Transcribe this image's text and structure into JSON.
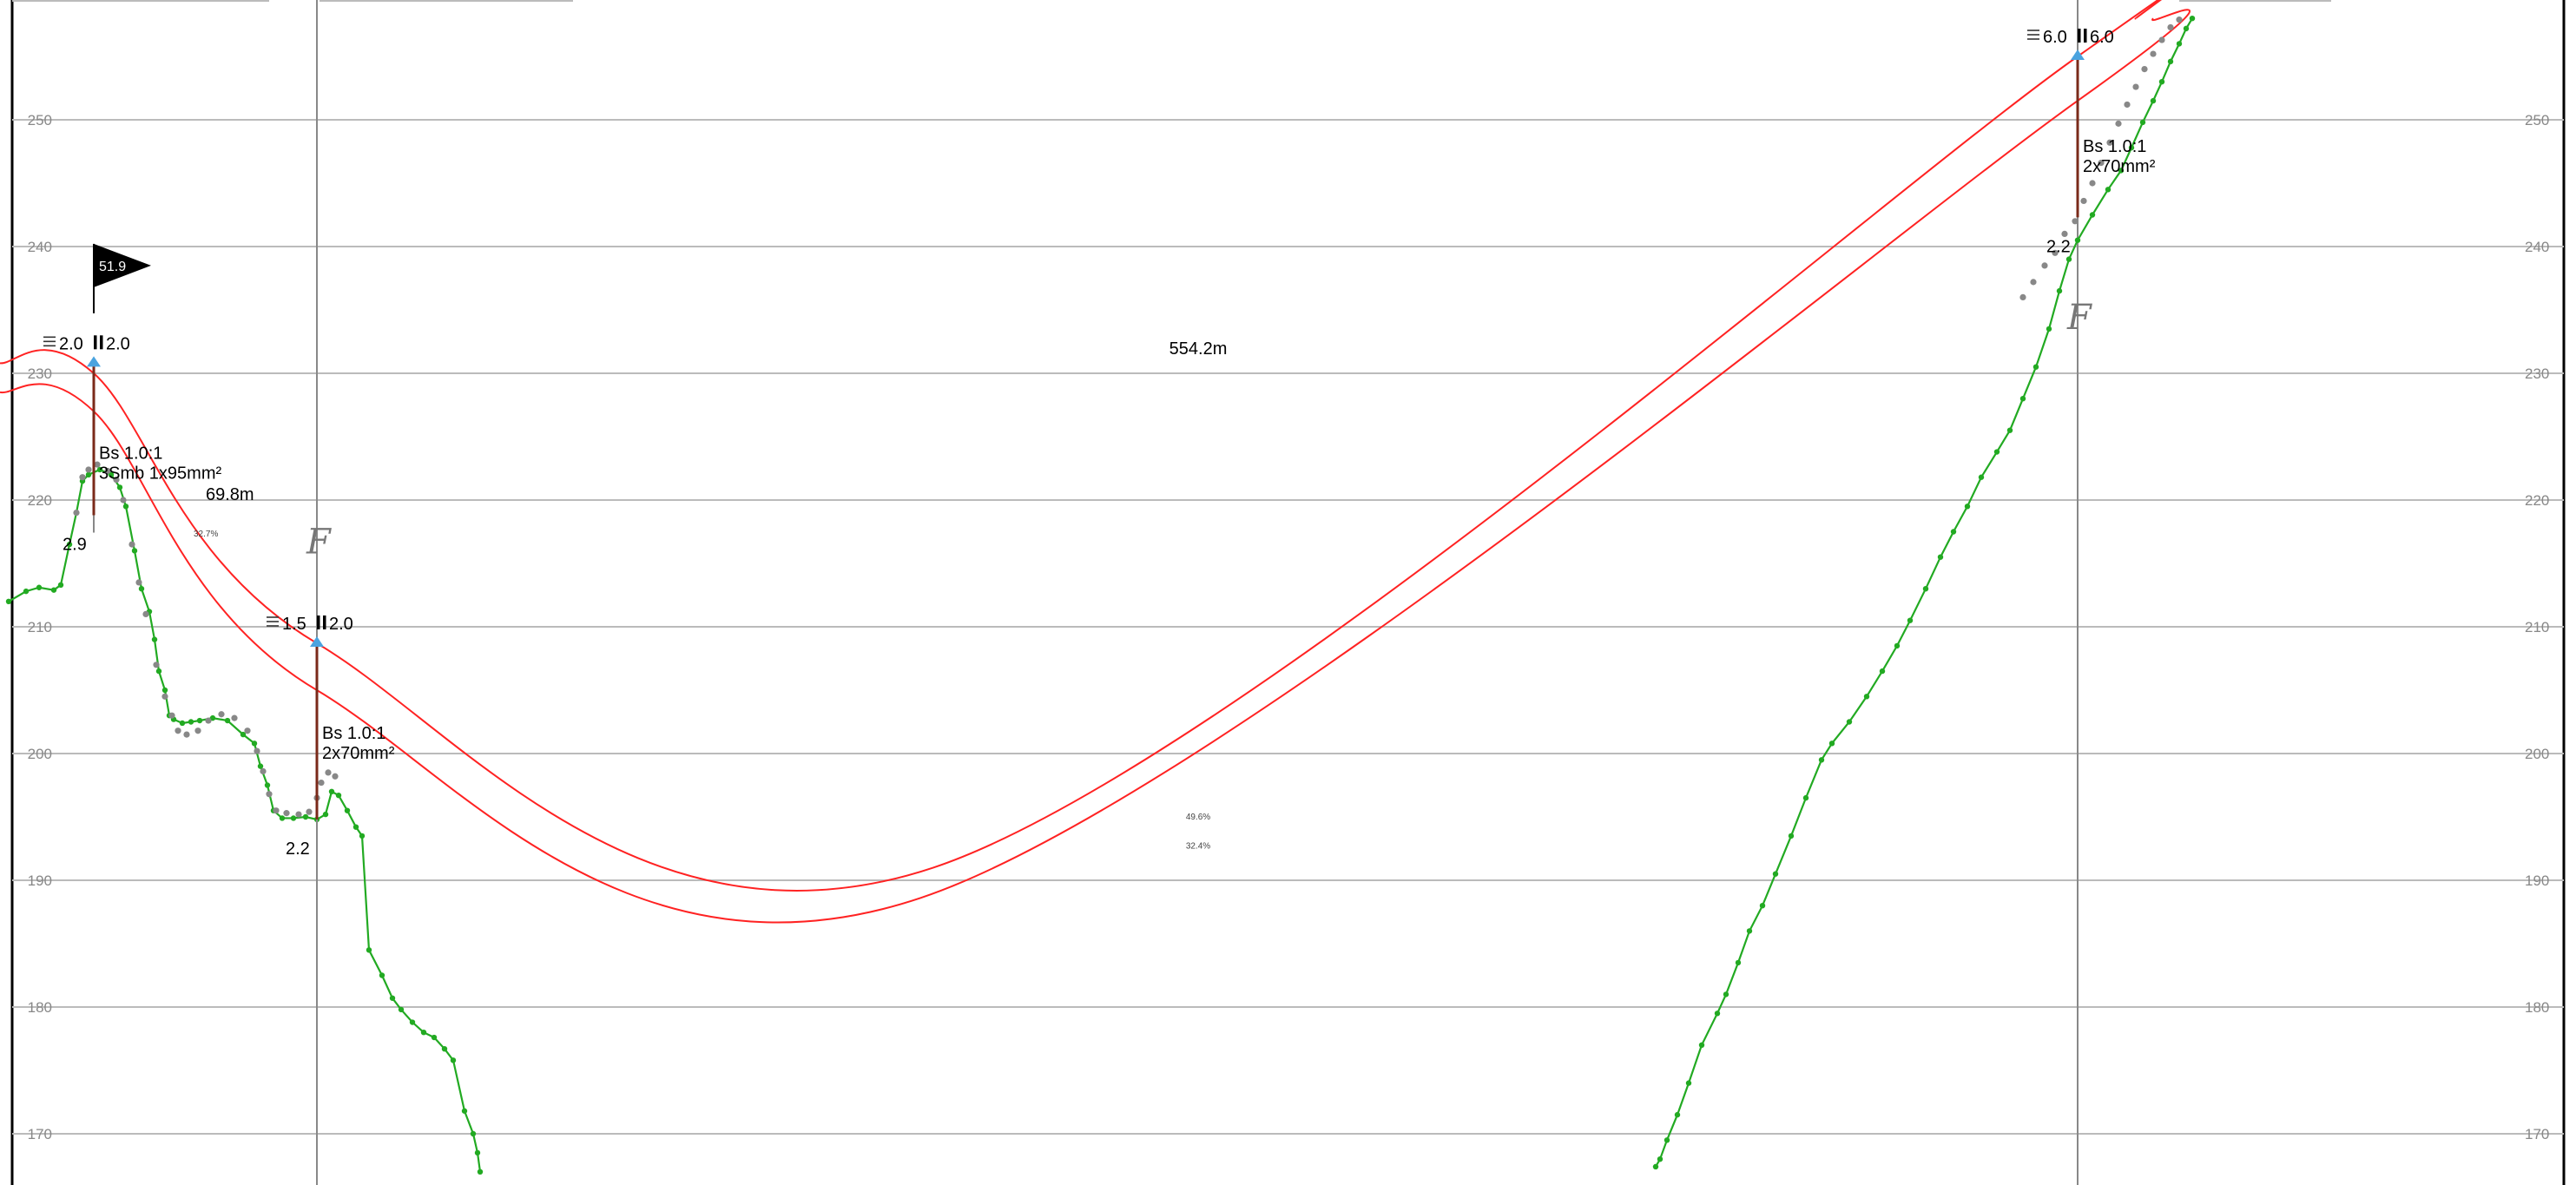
{
  "chart_data": {
    "type": "line",
    "ylim": [
      165,
      258
    ],
    "xlim": [
      0,
      2967
    ],
    "y_ticks": [
      "170",
      "180",
      "190",
      "200",
      "210",
      "220",
      "230",
      "240",
      "250"
    ],
    "grid": true,
    "span_label": "554.2m",
    "flag": {
      "label": "51.9",
      "x": 108,
      "elev": 238.5
    },
    "poles": [
      {
        "id": "p1",
        "x": 108,
        "top": 230.8,
        "base": 218.8,
        "left_label": "2.0",
        "right_label": "2.0",
        "desc": [
          "Bs 1.0:1",
          "3Smb   1x95mm²"
        ],
        "depth": "2.9",
        "f_mark": ""
      },
      {
        "id": "p2",
        "x": 365,
        "top": 208.7,
        "base": 194.8,
        "left_label": "1.5",
        "right_label": "2.0",
        "desc": [
          "Bs 1.0:1",
          "2x70mm²"
        ],
        "depth": "2.2",
        "f_mark": "F"
      },
      {
        "id": "p3",
        "x": 2393,
        "top": 255.0,
        "base": 242.3,
        "left_label": "6.0",
        "right_label": "6.0",
        "desc": [
          "Bs 1.0:1",
          "2x70mm²"
        ],
        "depth": "2.2",
        "f_mark": "F"
      }
    ],
    "spans": [
      {
        "label": "69.8m",
        "x": 237,
        "elev": 220.0,
        "slope": "32.7%"
      },
      {
        "label": "",
        "x": 1380,
        "elev": 194.8,
        "slope": "49.6%"
      },
      {
        "label": "",
        "x": 1380,
        "elev": 192.5,
        "slope": "32.4%"
      }
    ],
    "series": [
      {
        "name": "terrain",
        "points": [
          [
            10,
            212.0
          ],
          [
            30,
            212.8
          ],
          [
            45,
            213.1
          ],
          [
            62,
            212.9
          ],
          [
            70,
            213.3
          ],
          [
            80,
            216.5
          ],
          [
            88,
            219.0
          ],
          [
            95,
            221.5
          ],
          [
            102,
            222.0
          ],
          [
            115,
            222.4
          ],
          [
            128,
            222.0
          ],
          [
            138,
            221.0
          ],
          [
            145,
            219.5
          ],
          [
            155,
            216.0
          ],
          [
            163,
            213.0
          ],
          [
            172,
            211.2
          ],
          [
            178,
            209.0
          ],
          [
            183,
            206.5
          ],
          [
            190,
            205.0
          ],
          [
            195,
            203.0
          ],
          [
            200,
            202.7
          ],
          [
            210,
            202.4
          ],
          [
            220,
            202.5
          ],
          [
            230,
            202.6
          ],
          [
            245,
            202.8
          ],
          [
            262,
            202.6
          ],
          [
            280,
            201.5
          ],
          [
            293,
            200.8
          ],
          [
            300,
            199.0
          ],
          [
            308,
            197.5
          ],
          [
            315,
            195.5
          ],
          [
            325,
            194.9
          ],
          [
            338,
            194.9
          ],
          [
            352,
            195.0
          ],
          [
            365,
            194.8
          ],
          [
            375,
            195.2
          ],
          [
            382,
            197.0
          ],
          [
            390,
            196.7
          ],
          [
            400,
            195.5
          ],
          [
            410,
            194.2
          ],
          [
            417,
            193.5
          ],
          [
            425,
            184.5
          ],
          [
            440,
            182.5
          ],
          [
            452,
            180.7
          ],
          [
            462,
            179.8
          ],
          [
            475,
            178.8
          ],
          [
            488,
            178.0
          ],
          [
            500,
            177.6
          ],
          [
            512,
            176.7
          ],
          [
            522,
            175.8
          ],
          [
            535,
            171.8
          ],
          [
            545,
            170.0
          ],
          [
            550,
            168.5
          ],
          [
            553,
            167.0
          ]
        ]
      },
      {
        "name": "terrain-right",
        "points": [
          [
            1907,
            167.4
          ],
          [
            1912,
            168.0
          ],
          [
            1920,
            169.5
          ],
          [
            1932,
            171.5
          ],
          [
            1945,
            174.0
          ],
          [
            1960,
            177.0
          ],
          [
            1978,
            179.5
          ],
          [
            1988,
            181.0
          ],
          [
            2002,
            183.5
          ],
          [
            2015,
            186.0
          ],
          [
            2030,
            188.0
          ],
          [
            2045,
            190.5
          ],
          [
            2063,
            193.5
          ],
          [
            2080,
            196.5
          ],
          [
            2098,
            199.5
          ],
          [
            2110,
            200.8
          ],
          [
            2130,
            202.5
          ],
          [
            2150,
            204.5
          ],
          [
            2168,
            206.5
          ],
          [
            2185,
            208.5
          ],
          [
            2200,
            210.5
          ],
          [
            2218,
            213.0
          ],
          [
            2235,
            215.5
          ],
          [
            2250,
            217.5
          ],
          [
            2266,
            219.5
          ],
          [
            2282,
            221.8
          ],
          [
            2300,
            223.8
          ],
          [
            2315,
            225.5
          ],
          [
            2330,
            228.0
          ],
          [
            2345,
            230.5
          ],
          [
            2360,
            233.5
          ],
          [
            2372,
            236.5
          ],
          [
            2383,
            239.0
          ],
          [
            2393,
            240.5
          ],
          [
            2410,
            242.5
          ],
          [
            2428,
            244.5
          ],
          [
            2443,
            246.0
          ],
          [
            2455,
            247.8
          ],
          [
            2468,
            249.8
          ],
          [
            2480,
            251.5
          ],
          [
            2490,
            253.0
          ],
          [
            2500,
            254.6
          ],
          [
            2510,
            256.0
          ],
          [
            2518,
            257.2
          ],
          [
            2525,
            258.0
          ]
        ]
      }
    ],
    "grey_points": [
      [
        88,
        219.0
      ],
      [
        95,
        221.8
      ],
      [
        102,
        222.4
      ],
      [
        112,
        222.8
      ],
      [
        124,
        222.3
      ],
      [
        134,
        221.6
      ],
      [
        142,
        220.0
      ],
      [
        152,
        216.5
      ],
      [
        160,
        213.5
      ],
      [
        168,
        211.0
      ],
      [
        180,
        207.0
      ],
      [
        190,
        204.5
      ],
      [
        198,
        203.0
      ],
      [
        205,
        201.8
      ],
      [
        215,
        201.5
      ],
      [
        228,
        201.8
      ],
      [
        240,
        202.6
      ],
      [
        255,
        203.1
      ],
      [
        270,
        202.8
      ],
      [
        285,
        201.8
      ],
      [
        296,
        200.2
      ],
      [
        303,
        198.6
      ],
      [
        310,
        196.8
      ],
      [
        318,
        195.5
      ],
      [
        330,
        195.3
      ],
      [
        344,
        195.2
      ],
      [
        356,
        195.4
      ],
      [
        365,
        196.5
      ],
      [
        370,
        197.7
      ],
      [
        378,
        198.5
      ],
      [
        386,
        198.2
      ],
      [
        2330,
        236.0
      ],
      [
        2342,
        237.2
      ],
      [
        2355,
        238.5
      ],
      [
        2367,
        239.5
      ],
      [
        2378,
        241.0
      ],
      [
        2390,
        242.0
      ],
      [
        2400,
        243.6
      ],
      [
        2410,
        245.0
      ],
      [
        2420,
        246.6
      ],
      [
        2430,
        248.2
      ],
      [
        2440,
        249.7
      ],
      [
        2450,
        251.2
      ],
      [
        2460,
        252.6
      ],
      [
        2470,
        254.0
      ],
      [
        2480,
        255.2
      ],
      [
        2490,
        256.3
      ],
      [
        2500,
        257.3
      ],
      [
        2510,
        257.9
      ]
    ],
    "conductors": [
      {
        "name": "conductor-upper",
        "points": [
          [
            0,
            230.8
          ],
          [
            108,
            230.0
          ],
          [
            365,
            208.7
          ],
          [
            1075,
            191.0
          ],
          [
            2393,
            255.0
          ],
          [
            2460,
            258.0
          ]
        ]
      },
      {
        "name": "conductor-lower",
        "points": [
          [
            0,
            228.5
          ],
          [
            108,
            227.0
          ],
          [
            365,
            205.0
          ],
          [
            1060,
            188.6
          ],
          [
            2393,
            251.5
          ],
          [
            2480,
            258.0
          ]
        ]
      }
    ],
    "colors": {
      "terrain": "#22aa22",
      "grey_points": "#888888",
      "conductor": "#ff2222",
      "pole": "#7a2a1a",
      "grid": "#bbbbbb",
      "insulator": "#4aa3df"
    },
    "icons": {
      "layers_glyph": "three-lines-icon",
      "pins_glyph": "two-pins-icon"
    }
  }
}
